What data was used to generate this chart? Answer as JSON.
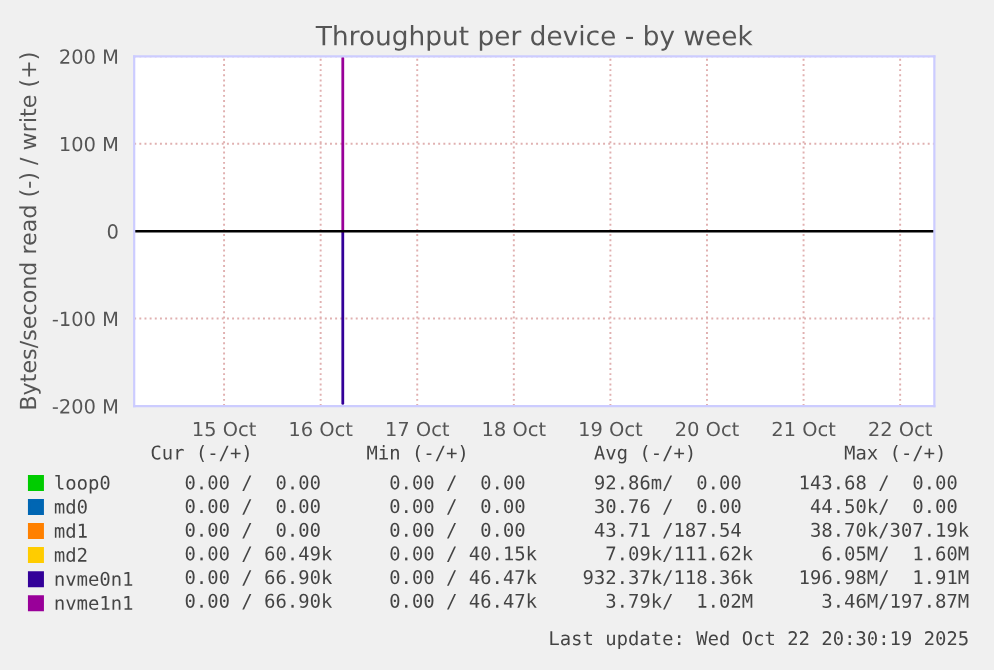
{
  "chart_data": {
    "type": "line",
    "title": "Throughput per device - by week",
    "ylabel": "Bytes/second read (-) / write (+)",
    "series": [
      {
        "name": "loop0",
        "color": "#00cc00"
      },
      {
        "name": "md0",
        "color": "#0066b3"
      },
      {
        "name": "md1",
        "color": "#ff8000"
      },
      {
        "name": "md2",
        "color": "#ffcc00"
      },
      {
        "name": "nvme0n1",
        "color": "#330099",
        "x": [
          "2025-10-16T17:30",
          "2025-10-16T17:30"
        ],
        "values": [
          0,
          -197000000
        ]
      },
      {
        "name": "nvme1n1",
        "color": "#990099",
        "x": [
          "2025-10-16T17:30",
          "2025-10-16T17:30"
        ],
        "values": [
          0,
          198000000
        ]
      }
    ],
    "xlim": [
      "2025-10-14T13:40",
      "2025-10-22T20:30"
    ],
    "xticks": [
      {
        "value": "2025-10-15T12:00",
        "label": "15 Oct"
      },
      {
        "value": "2025-10-16T12:00",
        "label": "16 Oct"
      },
      {
        "value": "2025-10-17T12:00",
        "label": "17 Oct"
      },
      {
        "value": "2025-10-18T12:00",
        "label": "18 Oct"
      },
      {
        "value": "2025-10-19T12:00",
        "label": "19 Oct"
      },
      {
        "value": "2025-10-20T12:00",
        "label": "20 Oct"
      },
      {
        "value": "2025-10-21T12:00",
        "label": "21 Oct"
      },
      {
        "value": "2025-10-22T12:00",
        "label": "22 Oct"
      }
    ],
    "ylim": [
      -200000000,
      200000000
    ],
    "yticks": [
      {
        "value": -200000000,
        "label": "-200 M"
      },
      {
        "value": -100000000,
        "label": "-100 M"
      },
      {
        "value": 0,
        "label": "0"
      },
      {
        "value": 100000000,
        "label": "100 M"
      },
      {
        "value": 200000000,
        "label": "200 M"
      }
    ],
    "ref_lines": [
      {
        "axis": "y",
        "value": 0,
        "color": "#000000"
      }
    ],
    "grid": true,
    "legend": "bottom left",
    "line_style": "solid",
    "marker": "none",
    "annotations": [
      "   Cur (-/+)          Min (-/+)           Avg (-/+)             Max (-/+)  ",
      "0.00 /  0.00      0.00 /  0.00      92.86m/  0.00     143.68 /  0.00 ",
      "0.00 /  0.00      0.00 /  0.00      30.76 /  0.00      44.50k/  0.00 ",
      "0.00 /  0.00      0.00 /  0.00      43.71 /187.54      38.70k/307.19k",
      "0.00 / 60.49k     0.00 / 40.15k      7.09k/111.62k      6.05M/  1.60M",
      "0.00 / 66.90k     0.00 / 46.47k    932.37k/118.36k    196.98M/  1.91M",
      "0.00 / 66.90k     0.00 / 46.47k      3.79k/  1.02M      3.46M/197.87M",
      "Last update: Wed Oct 22 20:30:19 2025"
    ]
  }
}
